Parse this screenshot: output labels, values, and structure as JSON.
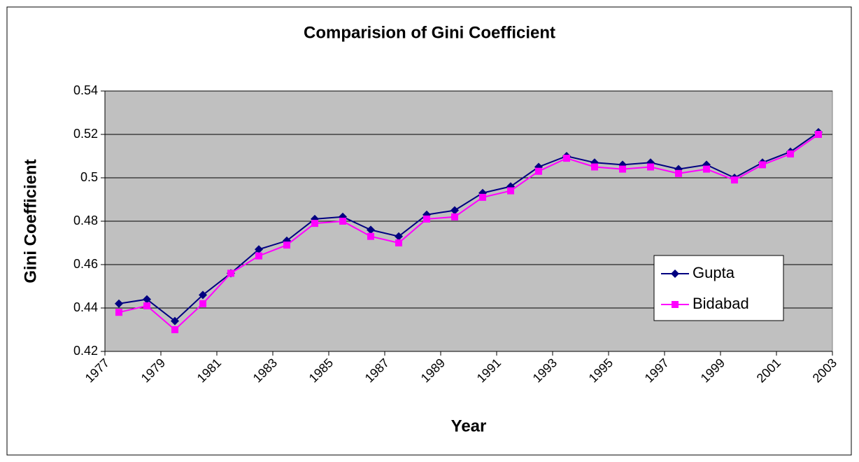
{
  "chart_data": {
    "type": "line",
    "title": "Comparision of Gini Coefficient",
    "x_label": "Year",
    "y_label": "Gini Coefficient",
    "x": [
      1977.5,
      1978.5,
      1979.5,
      1980.5,
      1981.5,
      1982.5,
      1983.5,
      1984.5,
      1985.5,
      1986.5,
      1987.5,
      1988.5,
      1989.5,
      1990.5,
      1991.5,
      1992.5,
      1993.5,
      1994.5,
      1995.5,
      1996.5,
      1997.5,
      1998.5,
      1999.5,
      2000.5,
      2001.5,
      2002.5
    ],
    "xlim": [
      1977,
      2003
    ],
    "xticks": [
      1977,
      1979,
      1981,
      1983,
      1985,
      1987,
      1989,
      1991,
      1993,
      1995,
      1997,
      1999,
      2001,
      2003
    ],
    "ylim": [
      0.42,
      0.54
    ],
    "yticks": [
      0.42,
      0.44,
      0.46,
      0.48,
      0.5,
      0.52,
      0.54
    ],
    "grid": true,
    "series": [
      {
        "name": "Gupta",
        "color": "#000080",
        "marker": "diamond",
        "values": [
          0.442,
          0.444,
          0.434,
          0.446,
          0.456,
          0.467,
          0.471,
          0.481,
          0.482,
          0.476,
          0.473,
          0.483,
          0.485,
          0.493,
          0.496,
          0.505,
          0.51,
          0.507,
          0.506,
          0.507,
          0.504,
          0.506,
          0.5,
          0.507,
          0.512,
          0.521
        ]
      },
      {
        "name": "Bidabad",
        "color": "#ff00ff",
        "marker": "square",
        "values": [
          0.438,
          0.441,
          0.43,
          0.442,
          0.456,
          0.464,
          0.469,
          0.479,
          0.48,
          0.473,
          0.47,
          0.481,
          0.482,
          0.491,
          0.494,
          0.503,
          0.509,
          0.505,
          0.504,
          0.505,
          0.502,
          0.504,
          0.499,
          0.506,
          0.511,
          0.52
        ]
      }
    ]
  }
}
